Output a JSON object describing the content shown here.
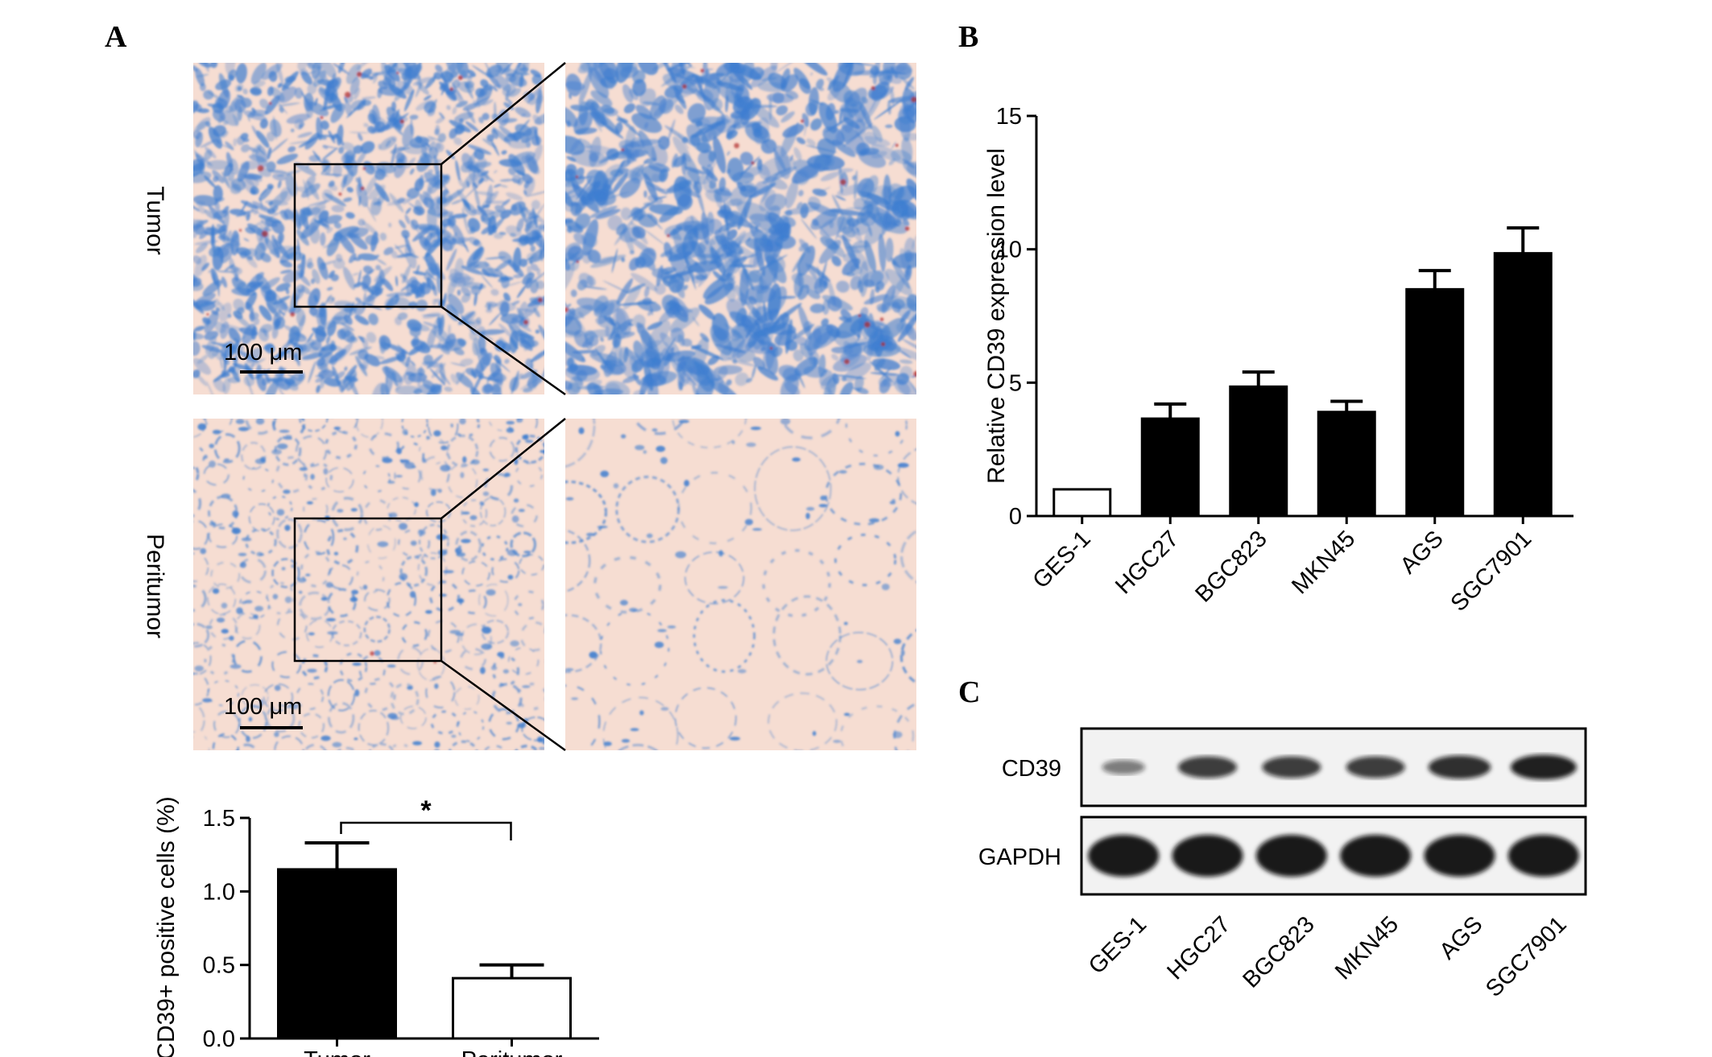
{
  "panels": {
    "a": "A",
    "b": "B",
    "c": "C"
  },
  "histology": {
    "rows": [
      {
        "label": "Tumor",
        "scale_bar": "100 μm"
      },
      {
        "label": "Peritumor",
        "scale_bar": "100 μm"
      }
    ],
    "colors": {
      "tissue_bg": "#f6ddd2",
      "stain_blue": "#3d7dd0",
      "stain_red": "#b02828"
    }
  },
  "chart_data": [
    {
      "id": "A",
      "type": "bar",
      "categories": [
        "Tumor",
        "Peritumor"
      ],
      "values": [
        1.15,
        0.41
      ],
      "errors": [
        0.18,
        0.09
      ],
      "fills": [
        "#000000",
        "#ffffff"
      ],
      "ylabel": "CD39+ positive cells (%)",
      "ylim": [
        0,
        1.5
      ],
      "yticks": [
        "0.0",
        "0.5",
        "1.0",
        "1.5"
      ],
      "significance": "*"
    },
    {
      "id": "B",
      "type": "bar",
      "categories": [
        "GES-1",
        "HGC27",
        "BGC823",
        "MKN45",
        "AGS",
        "SGC7901"
      ],
      "values": [
        1.0,
        3.65,
        4.85,
        3.9,
        8.5,
        9.85
      ],
      "errors": [
        0.0,
        0.55,
        0.55,
        0.4,
        0.7,
        0.95
      ],
      "fills": [
        "#ffffff",
        "#000000",
        "#000000",
        "#000000",
        "#000000",
        "#000000"
      ],
      "ylabel": "Relative CD39 expression level",
      "ylim": [
        0,
        15
      ],
      "yticks": [
        "0",
        "5",
        "10",
        "15"
      ]
    }
  ],
  "western_blot": {
    "rows": [
      {
        "label": "CD39",
        "intensity": [
          0.3,
          0.75,
          0.75,
          0.75,
          0.85,
          0.95
        ]
      },
      {
        "label": "GAPDH",
        "intensity": [
          1,
          1,
          1,
          1,
          1,
          1
        ]
      }
    ],
    "lanes": [
      "GES-1",
      "HGC27",
      "BGC823",
      "MKN45",
      "AGS",
      "SGC7901"
    ]
  }
}
